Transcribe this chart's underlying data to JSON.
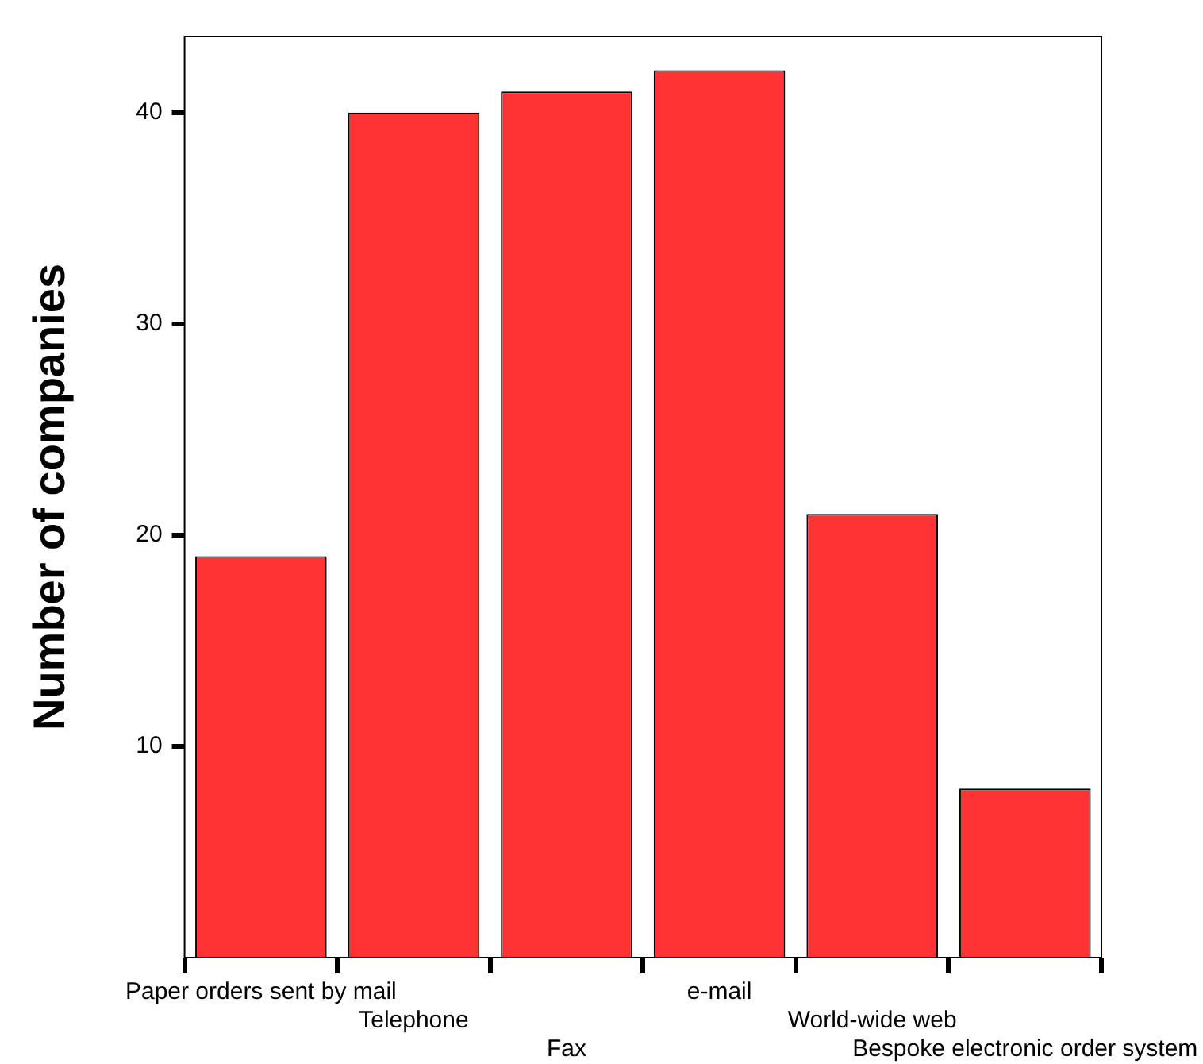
{
  "chart_data": {
    "type": "bar",
    "ylabel": "Number of companies",
    "categories": [
      "Paper orders sent by mail",
      "Telephone",
      "Fax",
      "e-mail",
      "World-wide web",
      "Bespoke electronic order system"
    ],
    "values": [
      19,
      40,
      41,
      42,
      21,
      8
    ],
    "color": "#ff3333",
    "ylim": [
      0,
      43.6
    ],
    "yticks": [
      10,
      20,
      30,
      40
    ],
    "grid": false
  }
}
